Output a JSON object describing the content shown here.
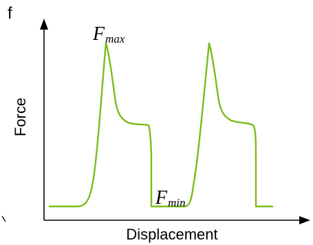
{
  "panel_label": "f",
  "axes": {
    "x_label": "Displacement",
    "y_label": "Force"
  },
  "annotations": {
    "fmax": {
      "main": "F",
      "sub": "max"
    },
    "fmin": {
      "main": "F",
      "sub": "min"
    }
  },
  "colors": {
    "curve": "#7dbb1c",
    "axis": "#000000"
  }
}
